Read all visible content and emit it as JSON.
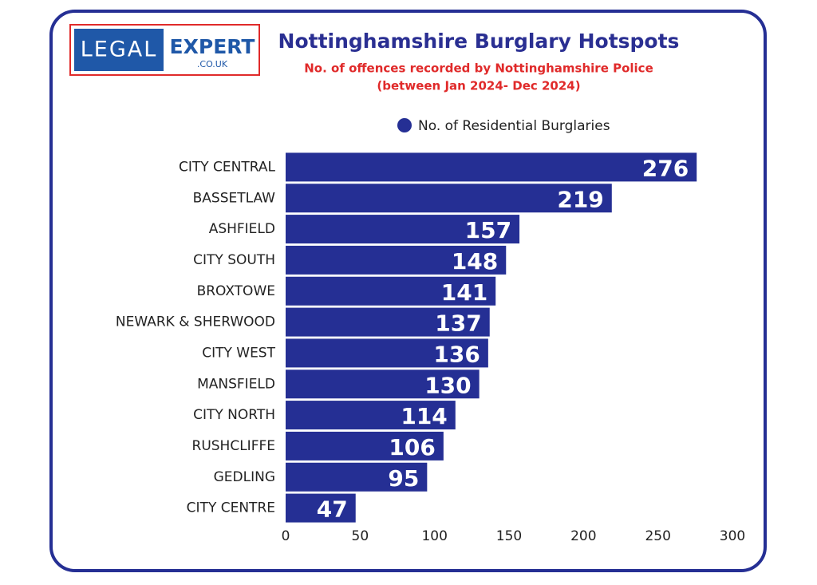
{
  "logo": {
    "left": "LEGAL",
    "right": "EXPERT",
    "domain": ".CO.UK"
  },
  "chart_data": {
    "type": "hbar",
    "title": "Nottinghamshire Burglary Hotspots",
    "subtitle": [
      "No. of offences recorded by Nottinghamshire Police",
      "(between Jan 2024- Dec 2024)"
    ],
    "categories": [
      "CITY CENTRAL",
      "BASSETLAW",
      "ASHFIELD",
      "CITY SOUTH",
      "BROXTOWE",
      "NEWARK & SHERWOOD",
      "CITY WEST",
      "MANSFIELD",
      "CITY NORTH",
      "RUSHCLIFFE",
      "GEDLING",
      "CITY CENTRE"
    ],
    "series": [
      {
        "name": "No. of Residential Burglaries",
        "color": "#252f94",
        "values": [
          276,
          219,
          157,
          148,
          141,
          137,
          136,
          130,
          114,
          106,
          95,
          47
        ]
      }
    ],
    "xlim": [
      0,
      300
    ],
    "xticks": [
      0,
      50,
      100,
      150,
      200,
      250,
      300
    ],
    "grid": false,
    "legend": "top"
  }
}
